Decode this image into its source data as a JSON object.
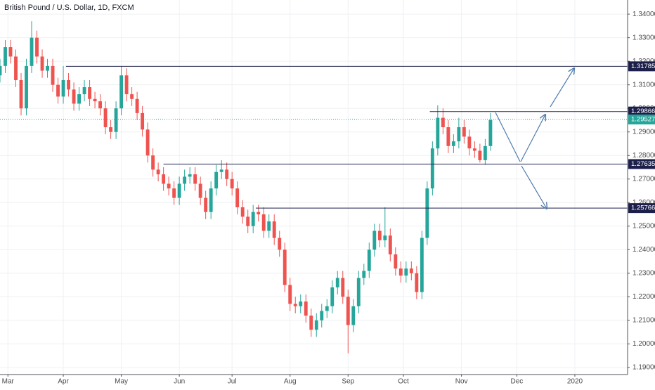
{
  "chart_data": {
    "type": "candlestick",
    "title": "British Pound / U.S. Dollar, 1D, FXCM",
    "x": [
      0,
      2,
      4,
      6,
      8,
      10,
      12,
      14,
      16,
      18,
      20,
      22,
      24,
      26,
      28,
      30,
      32,
      34,
      36,
      38,
      40,
      42,
      44,
      46,
      48,
      50,
      52,
      54,
      56,
      58,
      60,
      62,
      64,
      66,
      68,
      70,
      72,
      74,
      76,
      78,
      80,
      82,
      84,
      86,
      88,
      90,
      92,
      94,
      96,
      98,
      100,
      102,
      104,
      106,
      108,
      110,
      112,
      114,
      116,
      118,
      120,
      122,
      124,
      126,
      128,
      130,
      132,
      134,
      136,
      138,
      140,
      142,
      144,
      146,
      148,
      150,
      152,
      154,
      156,
      158,
      160,
      162,
      164,
      166,
      168,
      170,
      172,
      174,
      176,
      178,
      180,
      182,
      184,
      186
    ],
    "open": [
      1.314,
      1.318,
      1.326,
      1.322,
      1.312,
      1.3,
      1.318,
      1.33,
      1.322,
      1.316,
      1.318,
      1.31,
      1.305,
      1.312,
      1.308,
      1.302,
      1.306,
      1.309,
      1.304,
      1.303,
      1.3,
      1.292,
      1.29,
      1.3,
      1.314,
      1.306,
      1.304,
      1.298,
      1.291,
      1.28,
      1.274,
      1.272,
      1.268,
      1.266,
      1.262,
      1.268,
      1.271,
      1.272,
      1.268,
      1.262,
      1.256,
      1.266,
      1.273,
      1.274,
      1.27,
      1.266,
      1.258,
      1.254,
      1.25,
      1.256,
      1.255,
      1.248,
      1.252,
      1.245,
      1.24,
      1.225,
      1.217,
      1.216,
      1.218,
      1.212,
      1.206,
      1.21,
      1.214,
      1.216,
      1.224,
      1.228,
      1.22,
      1.208,
      1.216,
      1.228,
      1.231,
      1.24,
      1.248,
      1.244,
      1.246,
      1.238,
      1.232,
      1.229,
      1.232,
      1.23,
      1.222,
      1.245,
      1.266,
      1.283,
      1.296,
      1.292,
      1.284,
      1.286,
      1.292,
      1.288,
      1.283,
      1.282,
      1.278,
      1.284
    ],
    "high": [
      1.321,
      1.329,
      1.329,
      1.325,
      1.315,
      1.321,
      1.337,
      1.333,
      1.325,
      1.321,
      1.321,
      1.313,
      1.318,
      1.315,
      1.311,
      1.309,
      1.312,
      1.312,
      1.307,
      1.306,
      1.303,
      1.295,
      1.303,
      1.318,
      1.317,
      1.309,
      1.307,
      1.301,
      1.294,
      1.283,
      1.277,
      1.275,
      1.271,
      1.269,
      1.271,
      1.274,
      1.275,
      1.275,
      1.271,
      1.265,
      1.269,
      1.276,
      1.278,
      1.277,
      1.273,
      1.269,
      1.261,
      1.257,
      1.259,
      1.259,
      1.258,
      1.255,
      1.255,
      1.248,
      1.243,
      1.228,
      1.22,
      1.221,
      1.221,
      1.215,
      1.213,
      1.217,
      1.219,
      1.227,
      1.231,
      1.231,
      1.223,
      1.219,
      1.231,
      1.234,
      1.243,
      1.251,
      1.251,
      1.258,
      1.249,
      1.241,
      1.235,
      1.235,
      1.235,
      1.233,
      1.248,
      1.269,
      1.286,
      1.3013,
      1.3,
      1.295,
      1.289,
      1.296,
      1.295,
      1.291,
      1.286,
      1.285,
      1.287,
      1.298
    ],
    "low": [
      1.311,
      1.315,
      1.319,
      1.309,
      1.297,
      1.297,
      1.315,
      1.319,
      1.313,
      1.313,
      1.307,
      1.302,
      1.302,
      1.305,
      1.299,
      1.299,
      1.303,
      1.301,
      1.3,
      1.297,
      1.289,
      1.287,
      1.287,
      1.297,
      1.303,
      1.301,
      1.295,
      1.288,
      1.277,
      1.271,
      1.269,
      1.265,
      1.263,
      1.259,
      1.259,
      1.265,
      1.268,
      1.265,
      1.259,
      1.253,
      1.253,
      1.263,
      1.27,
      1.267,
      1.263,
      1.255,
      1.251,
      1.247,
      1.247,
      1.252,
      1.245,
      1.245,
      1.242,
      1.237,
      1.222,
      1.214,
      1.213,
      1.213,
      1.209,
      1.203,
      1.203,
      1.207,
      1.211,
      1.213,
      1.221,
      1.217,
      1.196,
      1.205,
      1.213,
      1.225,
      1.228,
      1.237,
      1.241,
      1.241,
      1.235,
      1.229,
      1.226,
      1.226,
      1.227,
      1.219,
      1.219,
      1.242,
      1.263,
      1.28,
      1.289,
      1.281,
      1.281,
      1.283,
      1.285,
      1.28,
      1.279,
      1.277,
      1.276,
      1.282
    ],
    "close": [
      1.318,
      1.326,
      1.322,
      1.312,
      1.3,
      1.318,
      1.33,
      1.322,
      1.316,
      1.318,
      1.31,
      1.305,
      1.312,
      1.308,
      1.302,
      1.306,
      1.309,
      1.304,
      1.303,
      1.3,
      1.292,
      1.29,
      1.3,
      1.314,
      1.306,
      1.304,
      1.298,
      1.291,
      1.28,
      1.274,
      1.272,
      1.268,
      1.266,
      1.262,
      1.268,
      1.271,
      1.272,
      1.268,
      1.262,
      1.256,
      1.266,
      1.273,
      1.274,
      1.27,
      1.266,
      1.258,
      1.254,
      1.25,
      1.256,
      1.255,
      1.248,
      1.252,
      1.245,
      1.24,
      1.225,
      1.217,
      1.216,
      1.218,
      1.212,
      1.206,
      1.21,
      1.214,
      1.216,
      1.224,
      1.228,
      1.22,
      1.208,
      1.216,
      1.228,
      1.231,
      1.24,
      1.248,
      1.244,
      1.246,
      1.238,
      1.232,
      1.229,
      1.232,
      1.23,
      1.222,
      1.245,
      1.266,
      1.283,
      1.296,
      1.292,
      1.284,
      1.286,
      1.292,
      1.288,
      1.283,
      1.282,
      1.278,
      1.284,
      1.295
    ],
    "up_color": "#26a69a",
    "down_color": "#ef5350",
    "xlim": [
      0,
      238
    ],
    "ylim": [
      1.187,
      1.346
    ],
    "grid": true,
    "xticks": [
      {
        "value": 3,
        "label": "Mar"
      },
      {
        "value": 24,
        "label": "Apr"
      },
      {
        "value": 46,
        "label": "May"
      },
      {
        "value": 68,
        "label": "Jun"
      },
      {
        "value": 88,
        "label": "Jul"
      },
      {
        "value": 110,
        "label": "Aug"
      },
      {
        "value": 132,
        "label": "Sep"
      },
      {
        "value": 153,
        "label": "Oct"
      },
      {
        "value": 175,
        "label": "Nov"
      },
      {
        "value": 196,
        "label": "Dec"
      },
      {
        "value": 218,
        "label": "2020"
      }
    ],
    "yticks": [
      {
        "value": 1.19,
        "label": "1.19000"
      },
      {
        "value": 1.2,
        "label": "1.20000"
      },
      {
        "value": 1.21,
        "label": "1.21000"
      },
      {
        "value": 1.22,
        "label": "1.22000"
      },
      {
        "value": 1.23,
        "label": "1.23000"
      },
      {
        "value": 1.24,
        "label": "1.24000"
      },
      {
        "value": 1.25,
        "label": "1.25000"
      },
      {
        "value": 1.26,
        "label": "1.26000"
      },
      {
        "value": 1.27,
        "label": "1.27000"
      },
      {
        "value": 1.28,
        "label": "1.28000"
      },
      {
        "value": 1.29,
        "label": "1.29000"
      },
      {
        "value": 1.3,
        "label": "1.30000"
      },
      {
        "value": 1.31,
        "label": "1.31000"
      },
      {
        "value": 1.32,
        "label": "1.32000"
      },
      {
        "value": 1.33,
        "label": "1.33000"
      },
      {
        "value": 1.34,
        "label": "1.34000"
      }
    ],
    "levels": [
      {
        "value": 1.31785,
        "label": "1.31785",
        "start": 25
      },
      {
        "value": 1.29866,
        "label": "1.29866",
        "start": 163
      },
      {
        "value": 1.27635,
        "label": "1.27635",
        "start": 62
      },
      {
        "value": 1.25766,
        "label": "1.25766",
        "start": 97
      }
    ],
    "level_color": "#1c1f4a",
    "last_price": {
      "value": 1.29527,
      "label": "1.29527"
    },
    "last_color": "#26a69a"
  }
}
